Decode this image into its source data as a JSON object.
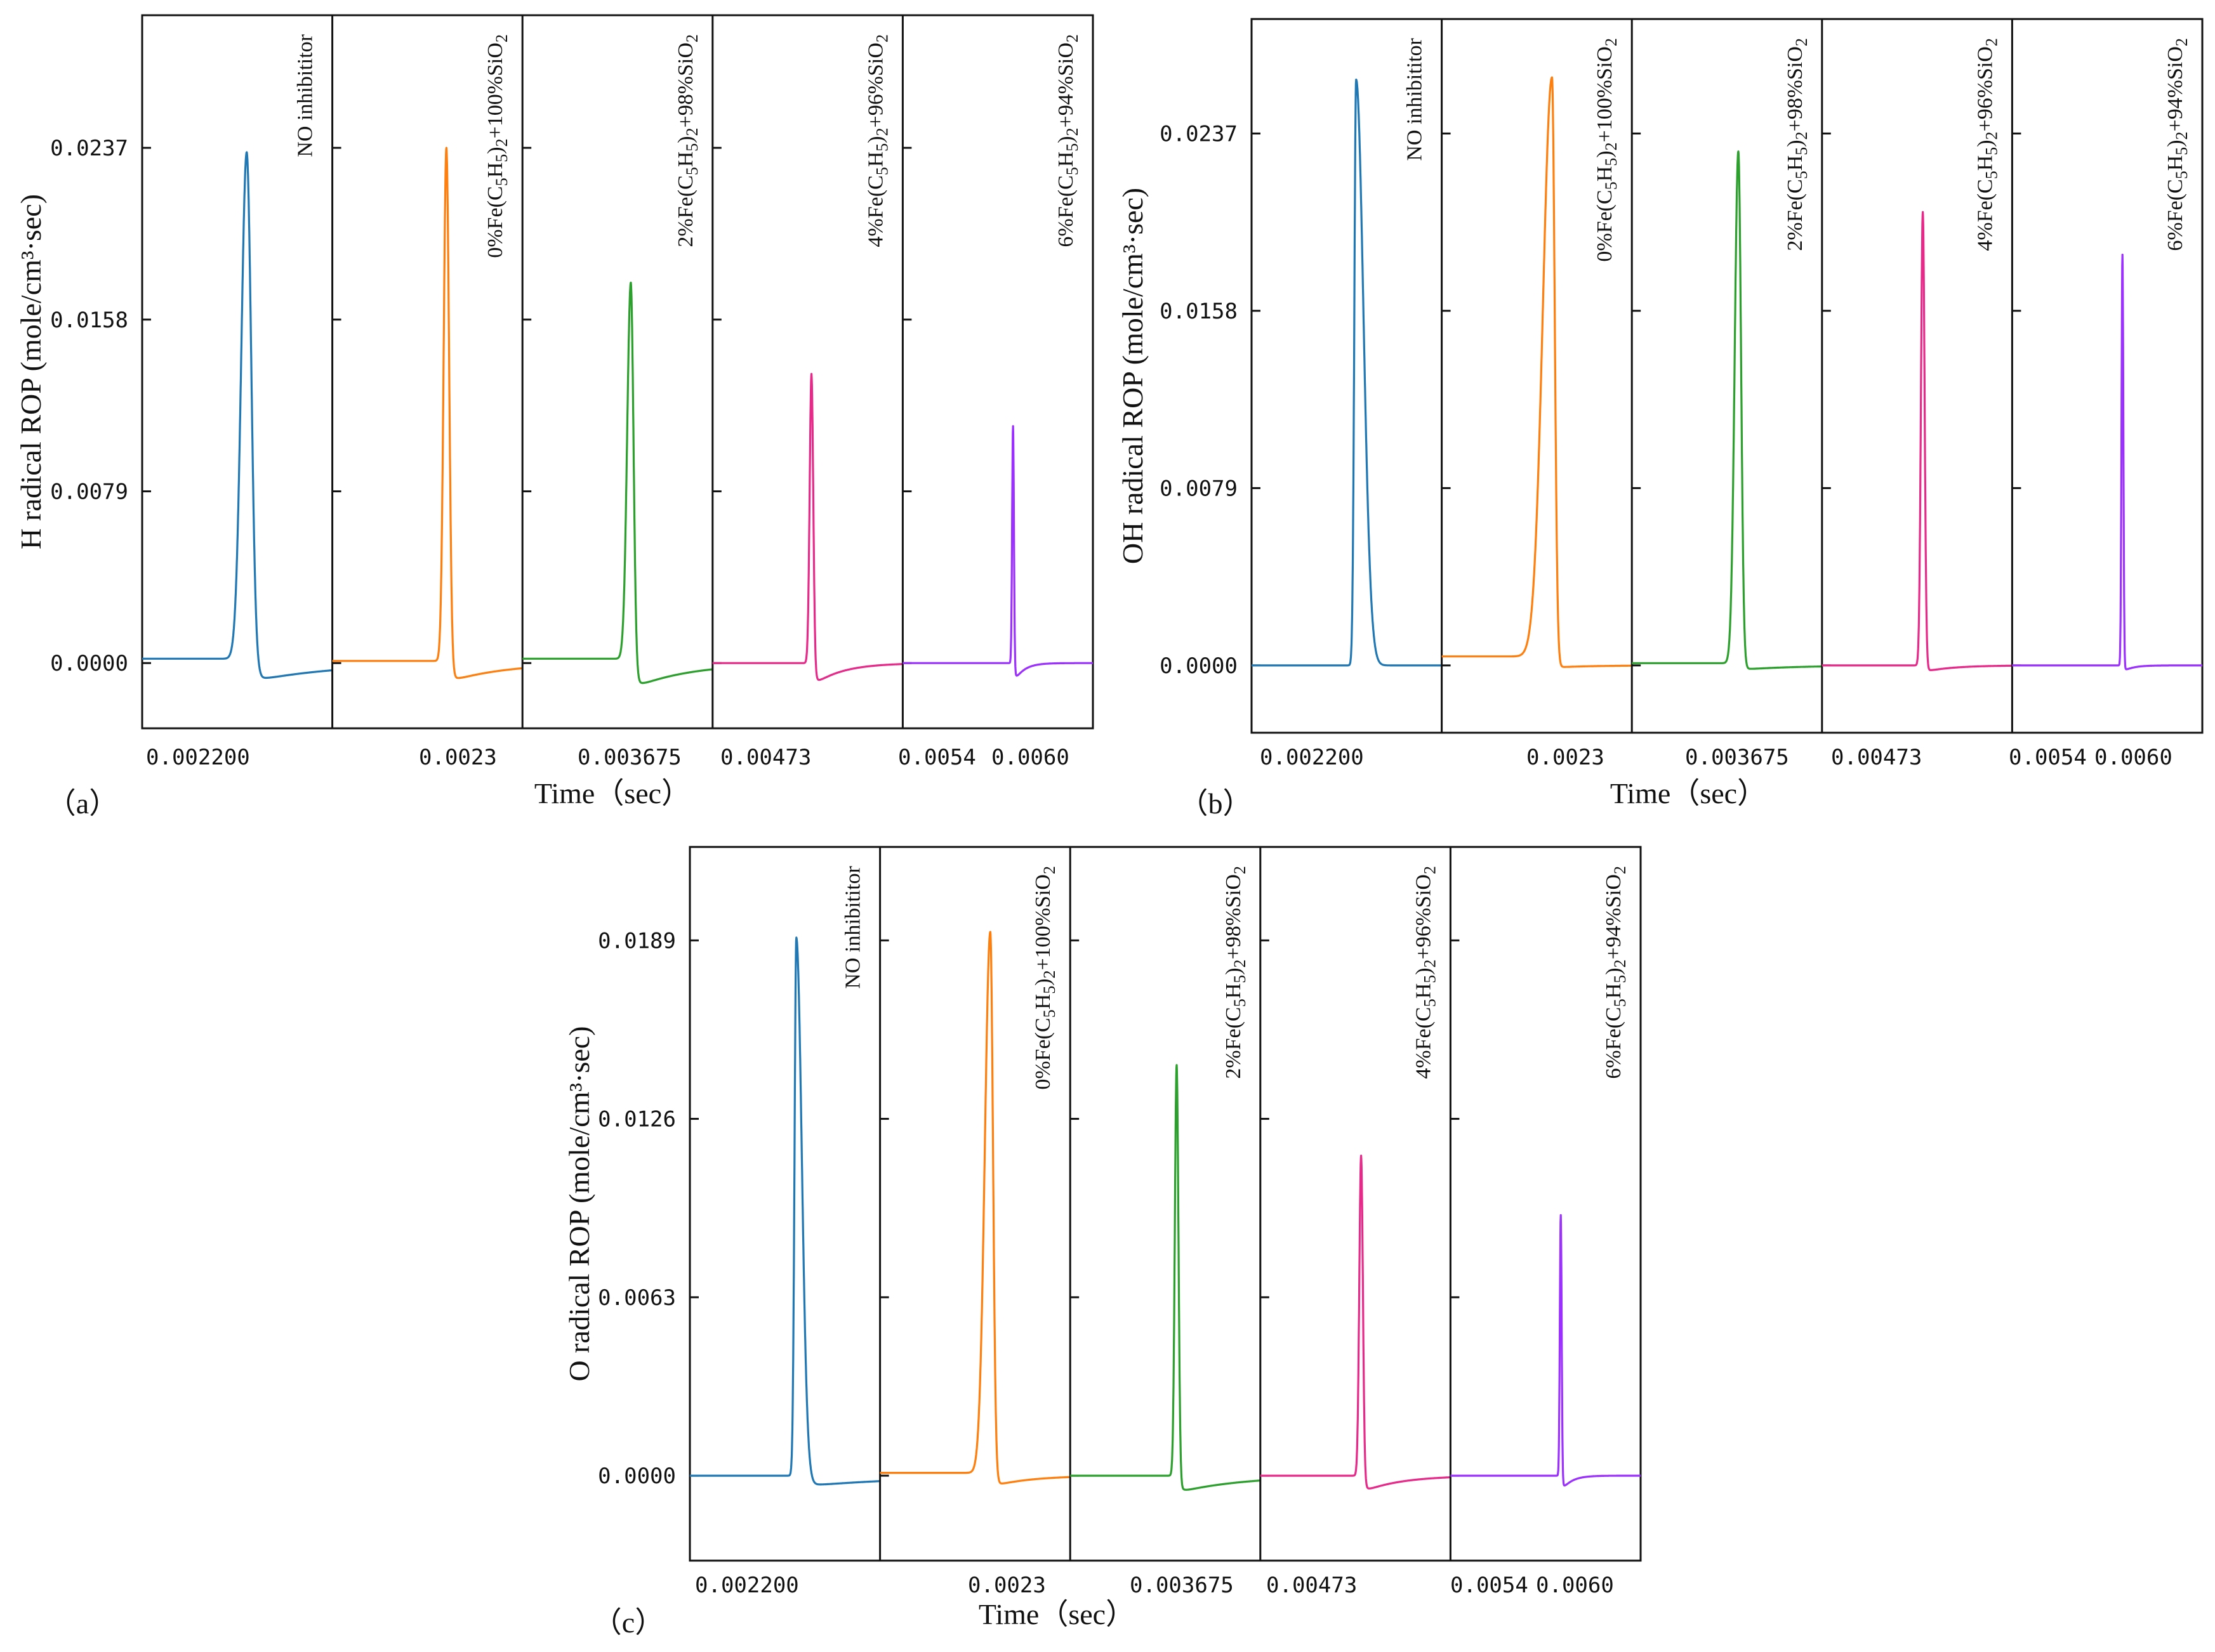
{
  "figure": {
    "subplots": [
      {
        "id": "a",
        "tag": "（a）",
        "ylabel": "H radical ROP (mole/cm³·sec)",
        "xlabel": "Time（sec）"
      },
      {
        "id": "b",
        "tag": "（b）",
        "ylabel": "OH radical ROP (mole/cm³·sec)",
        "xlabel": "Time（sec）"
      },
      {
        "id": "c",
        "tag": "（c）",
        "ylabel": "O radical ROP (mole/cm³·sec)",
        "xlabel": "Time（sec）"
      }
    ]
  },
  "chart_data": [
    {
      "type": "line",
      "panel": "a",
      "title": "",
      "xlabel": "Time（sec）",
      "ylabel": "H radical ROP (mole/cm³·sec)",
      "y_ticks": [
        "0.0000",
        "0.0079",
        "0.0158",
        "0.0237"
      ],
      "ylim": [
        -0.003,
        0.0298
      ],
      "x_tick_labels": [
        "0.002200",
        "0.0023",
        "0.003675",
        "0.00473",
        "0.0054",
        "0.0060"
      ],
      "series": [
        {
          "name": "NO inhibititor",
          "color": "#1f77b4",
          "peak": 0.0235,
          "trough": -0.0009,
          "peak_pos": 0.55,
          "rise_width": 0.06,
          "decay_width": 0.05,
          "trough_decay": 0.45,
          "pre_level": 0.0002
        },
        {
          "name": "0%Fe(C5H5)2+100%SiO2",
          "color": "#ff7f0e",
          "peak": 0.0237,
          "trough": -0.0009,
          "peak_pos": 0.6,
          "rise_width": 0.03,
          "decay_width": 0.03,
          "trough_decay": 0.3,
          "pre_level": 0.0001
        },
        {
          "name": "2%Fe(C5H5)2+98%SiO2",
          "color": "#2ca02c",
          "peak": 0.0175,
          "trough": -0.0012,
          "peak_pos": 0.57,
          "rise_width": 0.04,
          "decay_width": 0.03,
          "trough_decay": 0.3,
          "pre_level": 0.0002
        },
        {
          "name": "4%Fe(C5H5)2+96%SiO2",
          "color": "#e7298a",
          "peak": 0.0133,
          "trough": -0.0011,
          "peak_pos": 0.52,
          "rise_width": 0.02,
          "decay_width": 0.02,
          "trough_decay": 0.15,
          "pre_level": 0.0
        },
        {
          "name": "6%Fe(C5H5)2+94%SiO2",
          "color": "#9b30ff",
          "peak": 0.0109,
          "trough": -0.001,
          "peak_pos": 0.58,
          "rise_width": 0.01,
          "decay_width": 0.01,
          "trough_decay": 0.05,
          "pre_level": 0.0
        }
      ]
    },
    {
      "type": "line",
      "panel": "b",
      "title": "",
      "xlabel": "Time（sec）",
      "ylabel": "OH radical ROP (mole/cm³·sec)",
      "y_ticks": [
        "0.0000",
        "0.0079",
        "0.0158",
        "0.0237"
      ],
      "ylim": [
        -0.003,
        0.0288
      ],
      "x_tick_labels": [
        "0.002200",
        "0.0023",
        "0.003675",
        "0.00473",
        "0.0054",
        "0.0060"
      ],
      "series": [
        {
          "name": "NO inhibititor",
          "color": "#1f77b4",
          "peak": 0.0261,
          "trough": 0.0,
          "peak_pos": 0.55,
          "rise_width": 0.02,
          "decay_width": 0.08,
          "trough_decay": 0.3,
          "pre_level": 0.0
        },
        {
          "name": "0%Fe(C5H5)2+100%SiO2",
          "color": "#ff7f0e",
          "peak": 0.0262,
          "trough": -0.0001,
          "peak_pos": 0.58,
          "rise_width": 0.1,
          "decay_width": 0.03,
          "trough_decay": 0.2,
          "pre_level": 0.0004
        },
        {
          "name": "2%Fe(C5H5)2+98%SiO2",
          "color": "#2ca02c",
          "peak": 0.0229,
          "trough": -0.0002,
          "peak_pos": 0.56,
          "rise_width": 0.04,
          "decay_width": 0.03,
          "trough_decay": 0.3,
          "pre_level": 0.0001
        },
        {
          "name": "4%Fe(C5H5)2+96%SiO2",
          "color": "#e7298a",
          "peak": 0.0202,
          "trough": -0.0003,
          "peak_pos": 0.53,
          "rise_width": 0.02,
          "decay_width": 0.02,
          "trough_decay": 0.15,
          "pre_level": 0.0
        },
        {
          "name": "6%Fe(C5H5)2+94%SiO2",
          "color": "#9b30ff",
          "peak": 0.0183,
          "trough": -0.0003,
          "peak_pos": 0.58,
          "rise_width": 0.01,
          "decay_width": 0.01,
          "trough_decay": 0.05,
          "pre_level": 0.0
        }
      ]
    },
    {
      "type": "line",
      "panel": "c",
      "title": "",
      "xlabel": "Time（sec）",
      "ylabel": "O radical ROP (mole/cm³·sec)",
      "y_ticks": [
        "0.0000",
        "0.0063",
        "0.0126",
        "0.0189"
      ],
      "ylim": [
        -0.003,
        0.0222
      ],
      "x_tick_labels": [
        "0.002200",
        "0.0023",
        "0.003675",
        "0.00473",
        "0.0054",
        "0.0060"
      ],
      "series": [
        {
          "name": "NO inhibititor",
          "color": "#1f77b4",
          "peak": 0.019,
          "trough": -0.0004,
          "peak_pos": 0.56,
          "rise_width": 0.02,
          "decay_width": 0.06,
          "trough_decay": 0.6,
          "pre_level": 0.0
        },
        {
          "name": "0%Fe(C5H5)2+100%SiO2",
          "color": "#ff7f0e",
          "peak": 0.0192,
          "trough": -0.0004,
          "peak_pos": 0.58,
          "rise_width": 0.06,
          "decay_width": 0.03,
          "trough_decay": 0.2,
          "pre_level": 0.0001
        },
        {
          "name": "2%Fe(C5H5)2+98%SiO2",
          "color": "#2ca02c",
          "peak": 0.0145,
          "trough": -0.0006,
          "peak_pos": 0.56,
          "rise_width": 0.02,
          "decay_width": 0.02,
          "trough_decay": 0.35,
          "pre_level": 0.0
        },
        {
          "name": "4%Fe(C5H5)2+96%SiO2",
          "color": "#e7298a",
          "peak": 0.0113,
          "trough": -0.0006,
          "peak_pos": 0.53,
          "rise_width": 0.02,
          "decay_width": 0.02,
          "trough_decay": 0.2,
          "pre_level": 0.0
        },
        {
          "name": "6%Fe(C5H5)2+94%SiO2",
          "color": "#9b30ff",
          "peak": 0.0092,
          "trough": -0.0006,
          "peak_pos": 0.58,
          "rise_width": 0.01,
          "decay_width": 0.01,
          "trough_decay": 0.05,
          "pre_level": 0.0
        }
      ]
    }
  ]
}
